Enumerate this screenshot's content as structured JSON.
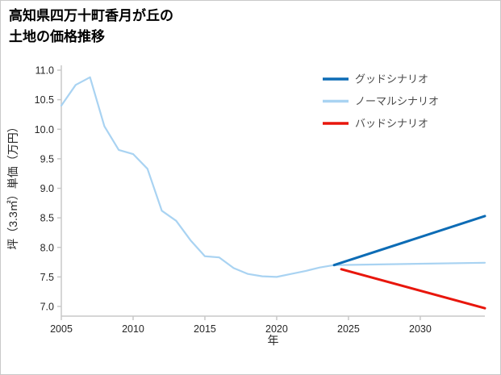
{
  "page": {
    "title_line1": "高知県四万十町香月が丘の",
    "title_line2": "土地の価格推移"
  },
  "chart_data": {
    "type": "line",
    "title": "高知県四万十町香月が丘の土地の価格推移",
    "xlabel": "年",
    "ylabel": "坪（3.3㎡）単価（万円）",
    "x_range": [
      2005,
      2034.5
    ],
    "y_range": [
      7.0,
      11.0
    ],
    "x_ticks": [
      2005,
      2010,
      2015,
      2020,
      2025,
      2030
    ],
    "y_ticks": [
      7.0,
      7.5,
      8.0,
      8.5,
      9.0,
      9.5,
      10.0,
      10.5,
      11.0
    ],
    "grid": false,
    "legend_position": "upper right",
    "legend_order": [
      "グッドシナリオ",
      "ノーマルシナリオ",
      "バッドシナリオ"
    ],
    "series": [
      {
        "name": "ノーマルシナリオ",
        "color": "#a9d3f2",
        "width": 2.2,
        "x": [
          2005,
          2006,
          2007,
          2008,
          2009,
          2010,
          2011,
          2012,
          2013,
          2014,
          2015,
          2016,
          2017,
          2018,
          2019,
          2020,
          2021,
          2022,
          2023,
          2024,
          2034.5
        ],
        "y": [
          10.4,
          10.75,
          10.88,
          10.05,
          9.65,
          9.58,
          9.33,
          8.62,
          8.45,
          8.12,
          7.85,
          7.83,
          7.65,
          7.55,
          7.51,
          7.5,
          7.55,
          7.6,
          7.66,
          7.7,
          7.74
        ]
      },
      {
        "name": "グッドシナリオ",
        "color": "#0d6cb5",
        "width": 3,
        "x": [
          2024,
          2034.5
        ],
        "y": [
          7.7,
          8.53
        ]
      },
      {
        "name": "バッドシナリオ",
        "color": "#e8160c",
        "width": 3,
        "x": [
          2024.5,
          2034.5
        ],
        "y": [
          7.63,
          6.97
        ]
      }
    ]
  }
}
